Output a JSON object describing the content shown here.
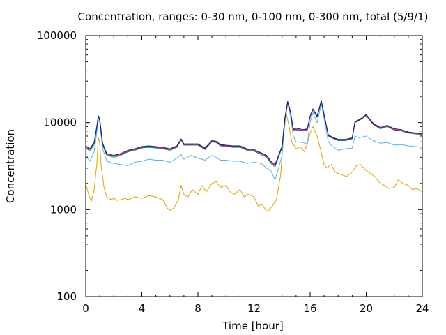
{
  "chart_data": {
    "type": "line",
    "title": "Concentration, ranges: 0-30 nm, 0-100 nm, 0-300 nm, total (5/9/1)",
    "xlabel": "Time [hour]",
    "ylabel": "Concentration",
    "xlim": [
      0,
      24
    ],
    "ylim": [
      100,
      100000
    ],
    "yscale": "log",
    "grid": false,
    "legend": "none",
    "x_ticks": [
      0,
      4,
      8,
      12,
      16,
      20,
      24
    ],
    "x_tick_labels": [
      "0",
      "4",
      "8",
      "12",
      "16",
      "20",
      "24"
    ],
    "y_ticks": [
      100,
      1000,
      10000,
      100000
    ],
    "y_tick_labels": [
      "100",
      "1000",
      "10000",
      "100000"
    ],
    "series": [
      {
        "color": "#e69f00",
        "x": [
          0,
          0.2,
          0.4,
          0.6,
          0.8,
          0.9,
          1.0,
          1.1,
          1.3,
          1.5,
          1.8,
          2.0,
          2.2,
          2.5,
          2.8,
          3.0,
          3.5,
          4.0,
          4.5,
          5.0,
          5.5,
          5.8,
          6.0,
          6.3,
          6.6,
          6.8,
          7.0,
          7.3,
          7.6,
          8.0,
          8.3,
          8.6,
          9.0,
          9.3,
          9.6,
          10.0,
          10.3,
          10.6,
          11.0,
          11.3,
          11.6,
          12.0,
          12.3,
          12.6,
          12.8,
          13.0,
          13.3,
          13.6,
          13.9,
          14.1,
          14.3,
          14.5,
          14.7,
          15.0,
          15.3,
          15.6,
          15.8,
          16.0,
          16.2,
          16.5,
          16.8,
          17.0,
          17.2,
          17.5,
          17.8,
          18.0,
          18.3,
          18.6,
          19.0,
          19.3,
          19.6,
          20.0,
          20.3,
          20.6,
          21.0,
          21.3,
          21.6,
          22.0,
          22.3,
          22.6,
          23.0,
          23.3,
          23.6,
          24.0
        ],
        "values": [
          2000,
          1500,
          1250,
          1700,
          3500,
          6800,
          5800,
          3200,
          1800,
          1400,
          1300,
          1350,
          1280,
          1300,
          1350,
          1300,
          1400,
          1350,
          1450,
          1400,
          1300,
          1050,
          980,
          1050,
          1300,
          1900,
          1500,
          1400,
          1700,
          1500,
          1900,
          1600,
          2000,
          2100,
          1800,
          1900,
          1600,
          1500,
          1700,
          1400,
          1500,
          1400,
          1100,
          1150,
          1000,
          950,
          1100,
          1300,
          2500,
          7000,
          12800,
          9000,
          6000,
          5000,
          5300,
          4600,
          5800,
          7500,
          9000,
          7000,
          4500,
          3300,
          3000,
          3300,
          2700,
          2600,
          2500,
          2400,
          2700,
          3200,
          3300,
          2800,
          2600,
          2400,
          2000,
          1900,
          1750,
          1800,
          2200,
          2000,
          1900,
          1700,
          1750,
          1600
        ]
      },
      {
        "color": "#56b4e9",
        "x": [
          0,
          0.3,
          0.6,
          0.8,
          0.9,
          1.0,
          1.2,
          1.5,
          2.0,
          2.5,
          3.0,
          3.5,
          4.0,
          4.5,
          5.0,
          5.5,
          6.0,
          6.5,
          6.8,
          7.0,
          7.5,
          8.0,
          8.5,
          9.0,
          9.3,
          9.6,
          10.0,
          10.5,
          11.0,
          11.5,
          12.0,
          12.5,
          12.9,
          13.2,
          13.5,
          13.8,
          14.0,
          14.2,
          14.4,
          14.6,
          14.8,
          15.0,
          15.5,
          15.8,
          16.0,
          16.2,
          16.5,
          16.8,
          17.0,
          17.3,
          17.6,
          18.0,
          18.5,
          19.0,
          19.2,
          19.5,
          20.0,
          20.5,
          21.0,
          21.5,
          22.0,
          22.5,
          23.0,
          23.5,
          24.0
        ],
        "values": [
          4200,
          3600,
          4600,
          8000,
          10800,
          10000,
          5000,
          3600,
          3400,
          3300,
          3200,
          3500,
          3600,
          3800,
          3700,
          3700,
          3500,
          3900,
          4300,
          3800,
          4200,
          3900,
          3700,
          4200,
          4000,
          3700,
          3700,
          3600,
          3600,
          3400,
          3500,
          3400,
          3000,
          2800,
          2200,
          3200,
          4200,
          10000,
          16500,
          12000,
          7000,
          6000,
          5900,
          5700,
          10000,
          13000,
          10000,
          16500,
          11000,
          6000,
          5300,
          4800,
          5000,
          5100,
          7000,
          6700,
          7000,
          6200,
          5800,
          5900,
          5500,
          5600,
          5400,
          5300,
          5200
        ]
      },
      {
        "color": "#009e73",
        "x": [
          0,
          0.3,
          0.6,
          0.8,
          0.9,
          1.0,
          1.2,
          1.5,
          2.0,
          2.5,
          3.0,
          3.5,
          4.0,
          4.5,
          5.0,
          5.5,
          6.0,
          6.5,
          6.8,
          7.0,
          7.5,
          8.0,
          8.5,
          9.0,
          9.3,
          9.6,
          10.0,
          10.5,
          11.0,
          11.5,
          12.0,
          12.5,
          12.9,
          13.2,
          13.5,
          13.8,
          14.0,
          14.2,
          14.4,
          14.6,
          14.8,
          15.0,
          15.5,
          15.8,
          16.0,
          16.2,
          16.5,
          16.8,
          17.0,
          17.3,
          17.6,
          18.0,
          18.5,
          19.0,
          19.2,
          19.5,
          20.0,
          20.5,
          21.0,
          21.5,
          22.0,
          22.5,
          23.0,
          23.5,
          24.0
        ],
        "values": [
          5100,
          4700,
          5600,
          9000,
          11500,
          10500,
          5500,
          4200,
          4000,
          4200,
          4600,
          4800,
          5100,
          5200,
          5100,
          5000,
          4800,
          5200,
          6300,
          5500,
          5500,
          5500,
          4900,
          6000,
          5900,
          5400,
          5300,
          5200,
          5200,
          4800,
          4700,
          4300,
          4000,
          3400,
          3100,
          4200,
          5200,
          11000,
          17000,
          13000,
          8000,
          8200,
          8000,
          8200,
          11500,
          14000,
          11500,
          17500,
          12000,
          7000,
          6600,
          6200,
          6200,
          6500,
          10000,
          10500,
          12000,
          9500,
          8500,
          9000,
          8200,
          8000,
          7600,
          7400,
          7300
        ]
      },
      {
        "color": "#cc0066",
        "x": [
          0,
          0.3,
          0.6,
          0.8,
          0.9,
          1.0,
          1.2,
          1.5,
          2.0,
          2.5,
          3.0,
          3.5,
          4.0,
          4.5,
          5.0,
          5.5,
          6.0,
          6.5,
          6.8,
          7.0,
          7.5,
          8.0,
          8.5,
          9.0,
          9.3,
          9.6,
          10.0,
          10.5,
          11.0,
          11.5,
          12.0,
          12.5,
          12.9,
          13.2,
          13.5,
          13.8,
          14.0,
          14.2,
          14.4,
          14.6,
          14.8,
          15.0,
          15.5,
          15.8,
          16.0,
          16.2,
          16.5,
          16.8,
          17.0,
          17.3,
          17.6,
          18.0,
          18.5,
          19.0,
          19.2,
          19.5,
          20.0,
          20.5,
          21.0,
          21.5,
          22.0,
          22.5,
          23.0,
          23.5,
          24.0
        ],
        "values": [
          5300,
          4900,
          5800,
          9200,
          11800,
          10800,
          5700,
          4300,
          4100,
          4300,
          4700,
          4900,
          5200,
          5300,
          5200,
          5100,
          4900,
          5300,
          6400,
          5600,
          5600,
          5600,
          5000,
          6100,
          6000,
          5500,
          5400,
          5300,
          5300,
          4900,
          4800,
          4400,
          4100,
          3500,
          3200,
          4300,
          5300,
          11200,
          17300,
          13200,
          8200,
          8400,
          8100,
          8300,
          11700,
          14200,
          11700,
          17700,
          12200,
          7100,
          6700,
          6300,
          6300,
          6600,
          10100,
          10600,
          12200,
          9600,
          8600,
          9100,
          8300,
          8100,
          7700,
          7500,
          7400
        ]
      },
      {
        "color": "#0b1f6b",
        "x": [
          0,
          0.3,
          0.6,
          0.8,
          0.9,
          1.0,
          1.2,
          1.5,
          2.0,
          2.5,
          3.0,
          3.5,
          4.0,
          4.5,
          5.0,
          5.5,
          6.0,
          6.5,
          6.8,
          7.0,
          7.5,
          8.0,
          8.5,
          9.0,
          9.3,
          9.6,
          10.0,
          10.5,
          11.0,
          11.5,
          12.0,
          12.5,
          12.9,
          13.2,
          13.5,
          13.8,
          14.0,
          14.2,
          14.4,
          14.6,
          14.8,
          15.0,
          15.5,
          15.8,
          16.0,
          16.2,
          16.5,
          16.8,
          17.0,
          17.3,
          17.6,
          18.0,
          18.5,
          19.0,
          19.2,
          19.5,
          20.0,
          20.5,
          21.0,
          21.5,
          22.0,
          22.5,
          23.0,
          23.5,
          24.0
        ],
        "values": [
          5400,
          5000,
          5900,
          9300,
          12000,
          11000,
          5800,
          4400,
          4200,
          4400,
          4800,
          5000,
          5300,
          5400,
          5300,
          5200,
          5000,
          5400,
          6500,
          5700,
          5700,
          5700,
          5100,
          6200,
          6100,
          5600,
          5500,
          5400,
          5400,
          5000,
          4900,
          4500,
          4200,
          3600,
          3300,
          4400,
          5400,
          11400,
          17600,
          13400,
          8400,
          8600,
          8300,
          8500,
          11900,
          14400,
          11900,
          18000,
          12400,
          7200,
          6800,
          6400,
          6400,
          6700,
          10300,
          10800,
          12400,
          9800,
          8800,
          9300,
          8500,
          8300,
          7800,
          7600,
          7500
        ]
      }
    ]
  }
}
